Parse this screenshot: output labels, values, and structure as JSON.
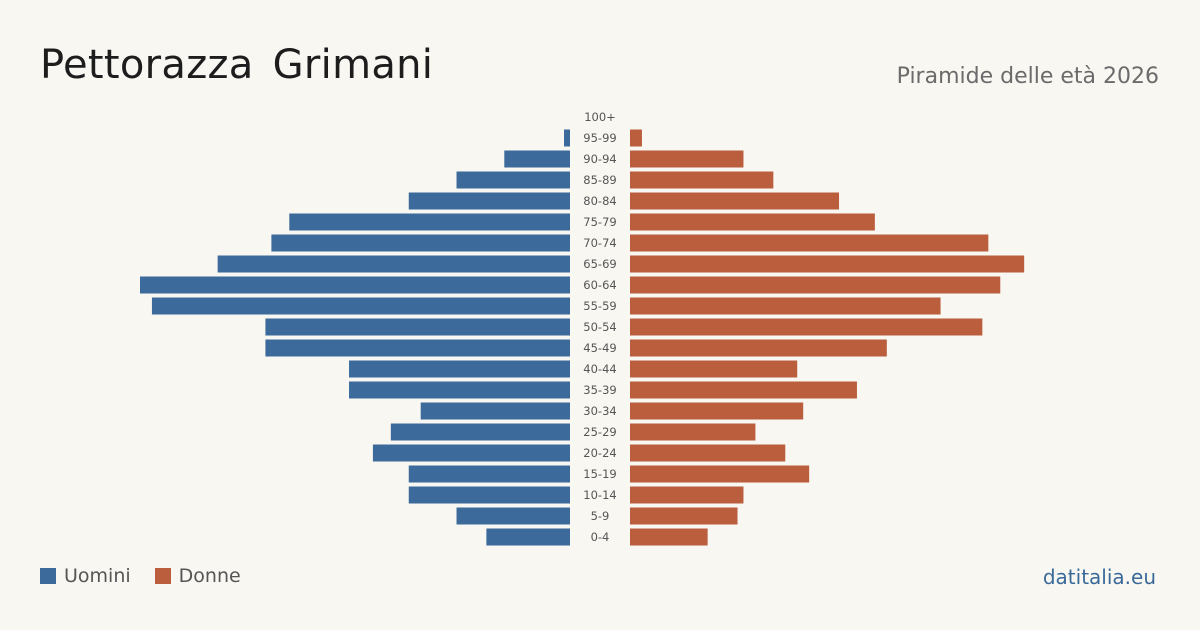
{
  "header": {
    "title": "Pettorazza  Grimani",
    "subtitle": "Piramide delle età 2026"
  },
  "legend": {
    "men_label": "Uomini",
    "women_label": "Donne"
  },
  "source": "datitalia.eu",
  "colors": {
    "men": "#3b6a9b",
    "women": "#bb5e3d",
    "background": "#f9f7f2"
  },
  "chart_data": {
    "type": "bar",
    "orientation": "horizontal-pyramid",
    "categories": [
      "100+",
      "95-99",
      "90-94",
      "85-89",
      "80-84",
      "75-79",
      "70-74",
      "65-69",
      "60-64",
      "55-59",
      "50-54",
      "45-49",
      "40-44",
      "35-39",
      "30-34",
      "25-29",
      "20-24",
      "15-19",
      "10-14",
      "5-9",
      "0-4"
    ],
    "series": [
      {
        "name": "Uomini",
        "values": [
          0,
          1,
          11,
          19,
          27,
          47,
          50,
          59,
          72,
          70,
          51,
          51,
          37,
          37,
          25,
          30,
          33,
          27,
          27,
          19,
          14
        ]
      },
      {
        "name": "Donne",
        "values": [
          0,
          2,
          19,
          24,
          35,
          41,
          60,
          66,
          62,
          52,
          59,
          43,
          28,
          38,
          29,
          21,
          26,
          30,
          19,
          18,
          13
        ]
      }
    ]
  }
}
